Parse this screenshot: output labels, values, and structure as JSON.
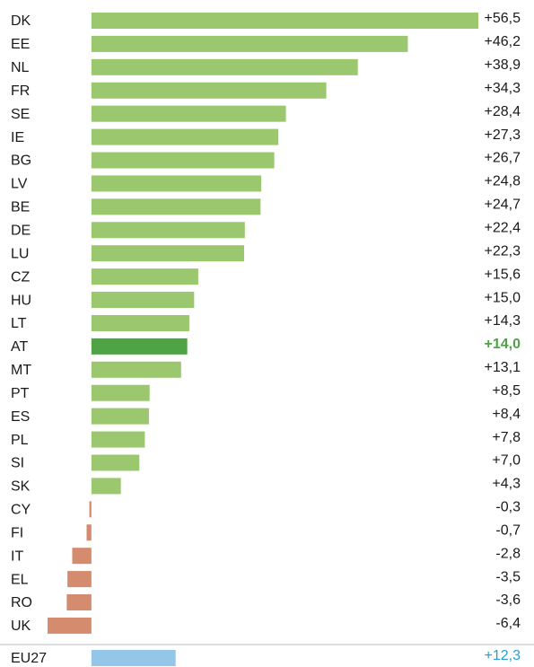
{
  "chart_data": {
    "type": "hbar",
    "categories": [
      "DK",
      "EE",
      "NL",
      "FR",
      "SE",
      "IE",
      "BG",
      "LV",
      "BE",
      "DE",
      "LU",
      "CZ",
      "HU",
      "LT",
      "AT",
      "MT",
      "PT",
      "ES",
      "PL",
      "SI",
      "SK",
      "CY",
      "FI",
      "IT",
      "EL",
      "RO",
      "UK",
      "EU27"
    ],
    "values": [
      56.5,
      46.2,
      38.9,
      34.3,
      28.4,
      27.3,
      26.7,
      24.8,
      24.7,
      22.4,
      22.3,
      15.6,
      15.0,
      14.3,
      14.0,
      13.1,
      8.5,
      8.4,
      7.8,
      7.0,
      4.3,
      -0.3,
      -0.7,
      -2.8,
      -3.5,
      -3.6,
      -6.4,
      12.3
    ],
    "value_labels": [
      "+56,5",
      "+46,2",
      "+38,9",
      "+34,3",
      "+28,4",
      "+27,3",
      "+26,7",
      "+24,8",
      "+24,7",
      "+22,4",
      "+22,3",
      "+15,6",
      "+15,0",
      "+14,3",
      "+14,0",
      "+13,1",
      "+8,5",
      "+8,4",
      "+7,8",
      "+7,0",
      "+4,3",
      "-0,3",
      "-0,7",
      "-2,8",
      "-3,5",
      "-3,6",
      "-6,4",
      "+12,3"
    ],
    "colors": [
      "#9bc76e",
      "#9bc76e",
      "#9bc76e",
      "#9bc76e",
      "#9bc76e",
      "#9bc76e",
      "#9bc76e",
      "#9bc76e",
      "#9bc76e",
      "#9bc76e",
      "#9bc76e",
      "#9bc76e",
      "#9bc76e",
      "#9bc76e",
      "#4ea444",
      "#9bc76e",
      "#9bc76e",
      "#9bc76e",
      "#9bc76e",
      "#9bc76e",
      "#9bc76e",
      "#d48b6e",
      "#d48b6e",
      "#d48b6e",
      "#d48b6e",
      "#d48b6e",
      "#d48b6e",
      "#94c6ea"
    ],
    "label_colors": [
      "#1a1a1a",
      "#1a1a1a",
      "#1a1a1a",
      "#1a1a1a",
      "#1a1a1a",
      "#1a1a1a",
      "#1a1a1a",
      "#1a1a1a",
      "#1a1a1a",
      "#1a1a1a",
      "#1a1a1a",
      "#1a1a1a",
      "#1a1a1a",
      "#1a1a1a",
      "#4ea444",
      "#1a1a1a",
      "#1a1a1a",
      "#1a1a1a",
      "#1a1a1a",
      "#1a1a1a",
      "#1a1a1a",
      "#1a1a1a",
      "#1a1a1a",
      "#1a1a1a",
      "#1a1a1a",
      "#1a1a1a",
      "#1a1a1a",
      "#2b9bd3"
    ]
  }
}
